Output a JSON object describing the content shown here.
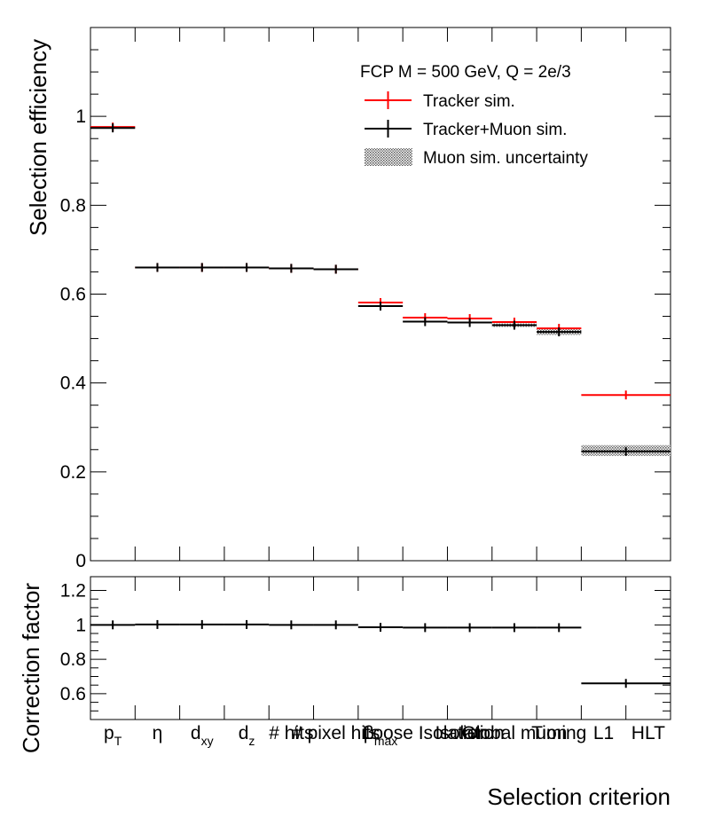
{
  "chart_data": [
    {
      "type": "step-errorbar",
      "panel": "top",
      "ylabel": "Selection efficiency",
      "ylim": [
        0,
        1.2
      ],
      "yticks": [
        "0",
        "0.2",
        "0.4",
        "0.6",
        "0.8",
        "1"
      ],
      "categories": [
        "p<sub>T</sub>",
        "η",
        "d<sub>xy</sub>",
        "d<sub>z</sub>",
        "# hits",
        "# pixel hits",
        "β<sub>max</sub>",
        "Loose Isolation",
        "Isolation",
        "Global muon",
        "Timing",
        "L1",
        "HLT"
      ],
      "legend": {
        "header": "FCP M = 500 GeV, Q = 2e/3",
        "placement": "top-right",
        "entries": [
          {
            "label": "Tracker sim.",
            "color": "#ff0000",
            "style": "marker"
          },
          {
            "label": "Tracker+Muon sim.",
            "color": "#000000",
            "style": "marker"
          },
          {
            "label": "Muon sim. uncertainty",
            "color": "#555555",
            "style": "band"
          }
        ]
      },
      "series": [
        {
          "name": "Tracker sim.",
          "color": "#ff0000",
          "bins": [
            [
              0,
              2,
              0.976
            ],
            [
              2,
              4,
              0.66
            ],
            [
              4,
              6,
              0.66
            ],
            [
              6,
              8,
              0.66
            ],
            [
              8,
              10,
              0.658
            ],
            [
              10,
              12,
              0.656
            ],
            [
              12,
              13,
              0.581
            ],
            [
              13,
              14,
              0.547
            ],
            [
              14,
              15,
              0.545
            ],
            [
              15,
              16,
              0.537
            ],
            [
              16,
              17,
              0.523
            ],
            [
              17,
              19,
              0.373
            ]
          ]
        },
        {
          "name": "Tracker+Muon sim.",
          "color": "#000000",
          "bins": [
            [
              0,
              2,
              0.974
            ],
            [
              2,
              4,
              0.66
            ],
            [
              4,
              6,
              0.66
            ],
            [
              6,
              8,
              0.66
            ],
            [
              8,
              10,
              0.658
            ],
            [
              10,
              12,
              0.656
            ],
            [
              12,
              13,
              0.573
            ],
            [
              13,
              14,
              0.538
            ],
            [
              14,
              15,
              0.536
            ],
            [
              15,
              16,
              0.53
            ],
            [
              16,
              17,
              0.515
            ],
            [
              17,
              19,
              0.246
            ]
          ]
        }
      ],
      "uncertainty_band": [
        [
          15,
          16,
          0.526,
          0.534
        ],
        [
          16,
          17,
          0.508,
          0.522
        ],
        [
          17,
          19,
          0.236,
          0.26
        ]
      ]
    },
    {
      "type": "step-errorbar",
      "panel": "bottom",
      "ylabel": "Correction factor",
      "xlabel": "Selection criterion",
      "ylim": [
        0.45,
        1.28
      ],
      "yticks": [
        "0.6",
        "0.8",
        "1",
        "1.2"
      ],
      "series": [
        {
          "name": "",
          "color": "#000000",
          "bins": [
            [
              0,
              2,
              1.0
            ],
            [
              2,
              4,
              1.002
            ],
            [
              4,
              6,
              1.002
            ],
            [
              6,
              8,
              1.002
            ],
            [
              8,
              10,
              1.0
            ],
            [
              10,
              12,
              1.0
            ],
            [
              12,
              13,
              0.986
            ],
            [
              13,
              14,
              0.984
            ],
            [
              14,
              15,
              0.984
            ],
            [
              15,
              16,
              0.984
            ],
            [
              16,
              17,
              0.984
            ],
            [
              17,
              19,
              0.66
            ]
          ]
        }
      ]
    }
  ]
}
